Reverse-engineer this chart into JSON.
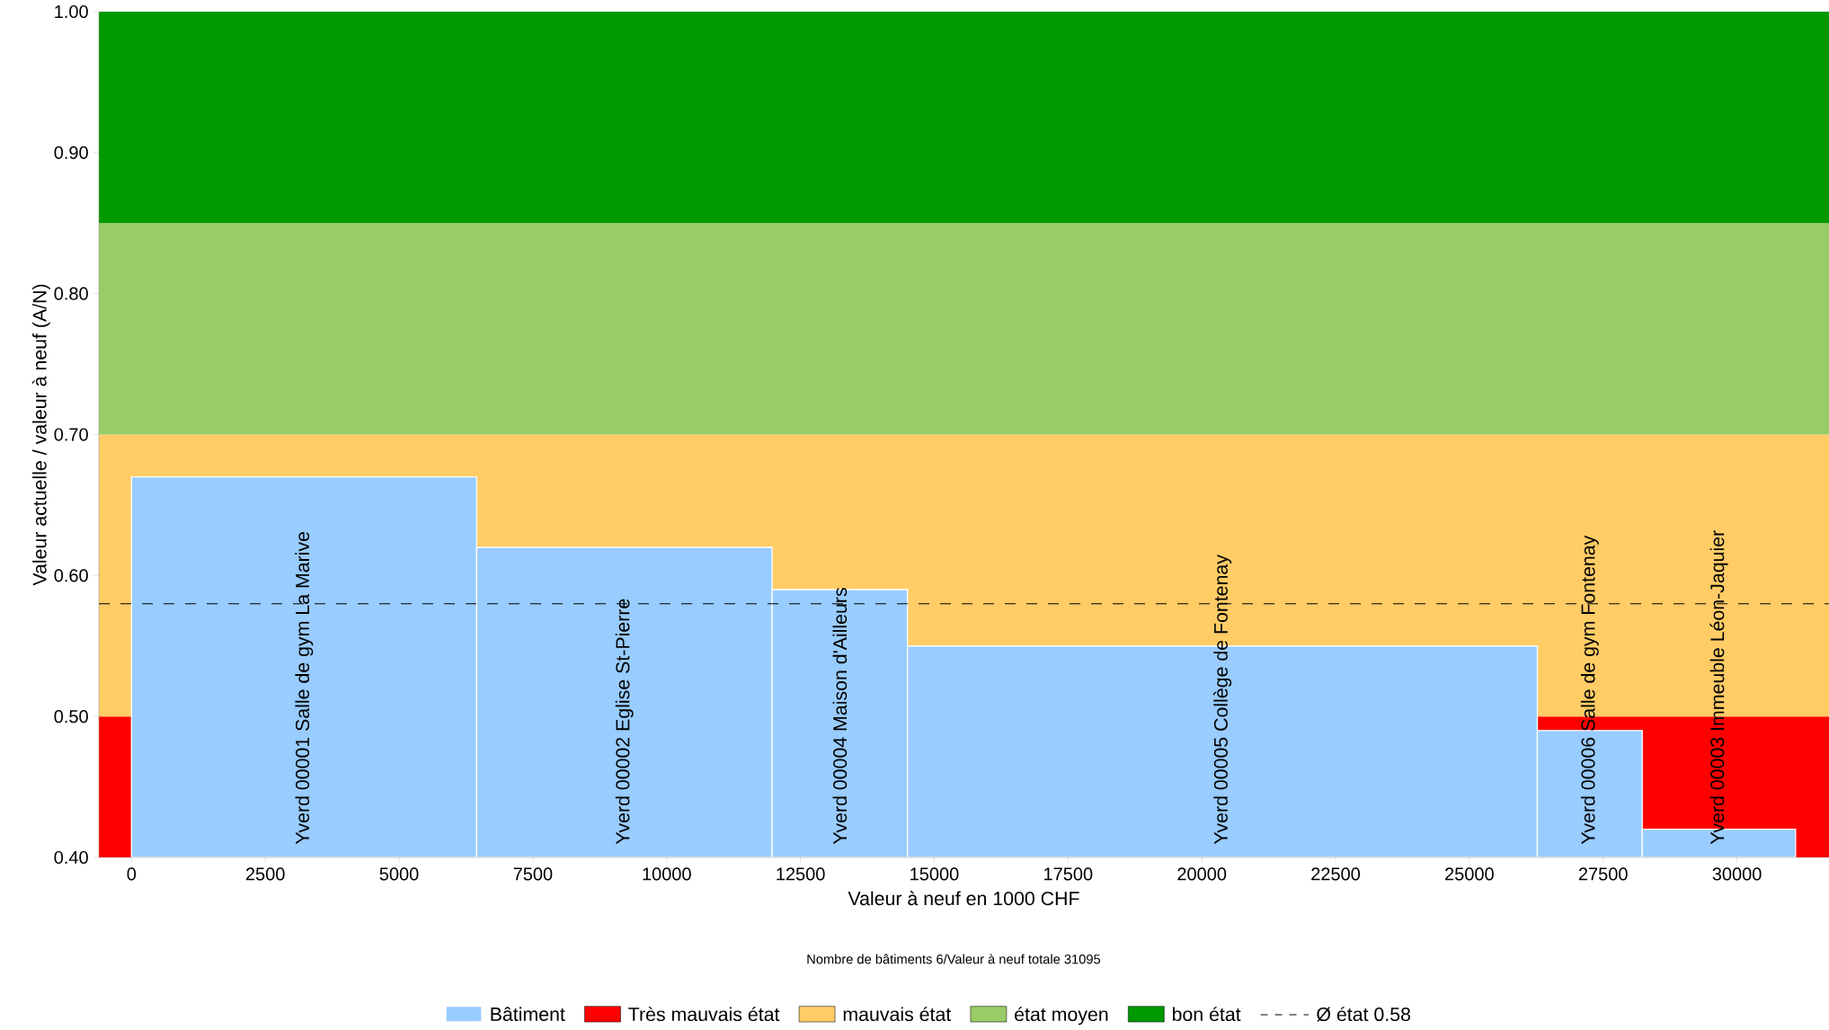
{
  "chart_data": {
    "type": "histogram",
    "xlabel": "Valeur à neuf en 1000 CHF",
    "ylabel": "Valeur actuelle / valeur à neuf (A/N)",
    "bins": [
      0,
      6450,
      11970,
      14500,
      26270,
      28230,
      31095
    ],
    "series": [
      {
        "name": "Bâtiment",
        "color": "#99ccff",
        "values": [
          0.67,
          0.62,
          0.59,
          0.55,
          0.49,
          0.42
        ],
        "value_labels": [
          "Yverd 00001 Salle de gym La Marive",
          "Yverd 00002 Eglise St-Pierre",
          "Yverd 00004 Maison d'Ailleurs",
          "Yverd 00005 Collège de Fontenay",
          "Yverd 00006 Salle de gym Fontenay",
          "Yverd 00003 Immeuble Léon-Jaquier"
        ]
      }
    ],
    "xlim": [
      -610,
      31720
    ],
    "ylim": [
      0.4,
      1.0
    ],
    "xticks": [
      0,
      2500,
      5000,
      7500,
      10000,
      12500,
      15000,
      17500,
      20000,
      22500,
      25000,
      27500,
      30000
    ],
    "yticks": [
      {
        "value": 0.4,
        "label": "0.40"
      },
      {
        "value": 0.5,
        "label": "0.50"
      },
      {
        "value": 0.6,
        "label": "0.60"
      },
      {
        "value": 0.7,
        "label": "0.70"
      },
      {
        "value": 0.8,
        "label": "0.80"
      },
      {
        "value": 0.9,
        "label": "0.90"
      },
      {
        "value": 1.0,
        "label": "1.00"
      }
    ],
    "bands": [
      {
        "axis": "y",
        "from": 0.4,
        "to": 0.5,
        "label": "Très mauvais état",
        "color": "#ff0000"
      },
      {
        "axis": "y",
        "from": 0.5,
        "to": 0.7,
        "label": "mauvais état",
        "color": "#ffcc66"
      },
      {
        "axis": "y",
        "from": 0.7,
        "to": 0.85,
        "label": "état moyen",
        "color": "#99cc66"
      },
      {
        "axis": "y",
        "from": 0.85,
        "to": 1.0,
        "label": "bon état",
        "color": "#009900"
      }
    ],
    "ref_lines": [
      {
        "axis": "y",
        "value": 0.58,
        "label": "Ø état 0.58",
        "color": "#000000",
        "line_style": "dashed"
      }
    ],
    "annotations": [
      "Nombre de bâtiments 6/Valeur à neuf totale 31095"
    ],
    "legend": "bottom"
  }
}
